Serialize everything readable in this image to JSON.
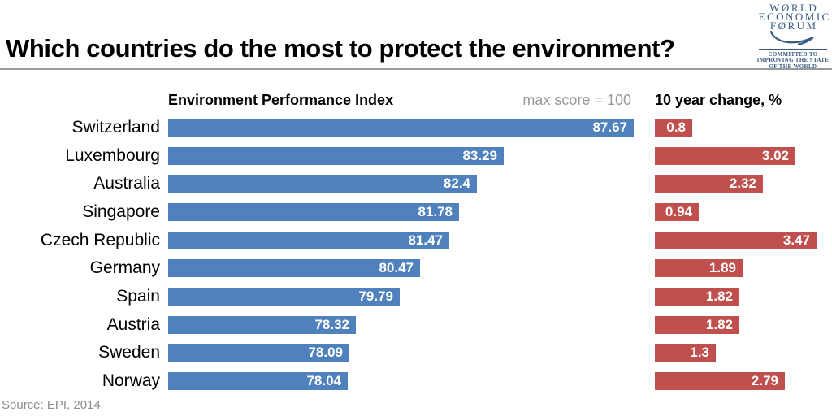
{
  "title": "Which countries do the most to protect the environment?",
  "source": "Source: EPI, 2014",
  "logo": {
    "lines": [
      "WØRLD",
      "ECONOMIC",
      "FØRUM"
    ],
    "tagline": [
      "COMMITTED TO",
      "IMPROVING THE STATE",
      "OF THE WORLD"
    ],
    "color": "#35597F"
  },
  "columns": {
    "epi_header": "Environment Performance Index",
    "epi_note": "max score = 100",
    "change_header": "10 year change, %"
  },
  "colors": {
    "epi_bar": "#4F81BD",
    "change_bar": "#C0504D",
    "note_gray": "#999999",
    "divider_gray": "#9A9A9A"
  },
  "chart_data": {
    "type": "bar",
    "orientation": "horizontal",
    "title": "Which countries do the most to protect the environment?",
    "categories": [
      "Switzerland",
      "Luxembourg",
      "Australia",
      "Singapore",
      "Czech Republic",
      "Germany",
      "Spain",
      "Austria",
      "Sweden",
      "Norway"
    ],
    "series": [
      {
        "name": "Environment Performance Index",
        "annotation": "max score = 100",
        "values": [
          87.67,
          83.29,
          82.4,
          81.78,
          81.47,
          80.47,
          79.79,
          78.32,
          78.09,
          78.04
        ],
        "color": "#4F81BD",
        "axis_min_displayed": 72,
        "axis_max": 100
      },
      {
        "name": "10 year change, %",
        "values": [
          0.8,
          3.02,
          2.32,
          0.94,
          3.47,
          1.89,
          1.82,
          1.82,
          1.3,
          2.79
        ],
        "color": "#C0504D",
        "axis_min_displayed": 0
      }
    ],
    "legend": "none",
    "grid": "off",
    "value_labels": "inside-end"
  }
}
